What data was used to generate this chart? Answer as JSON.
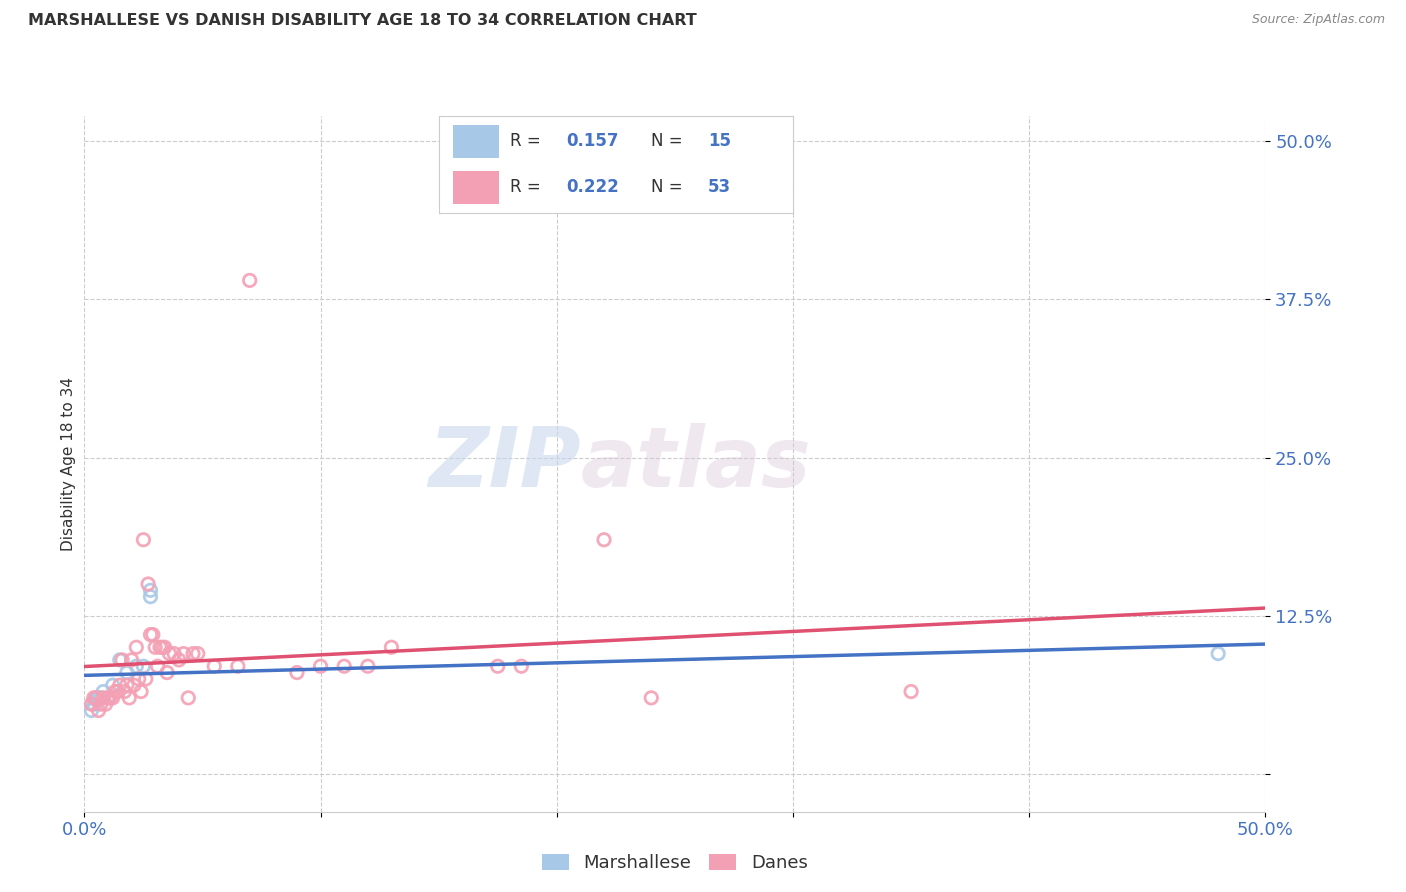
{
  "title": "MARSHALLESE VS DANISH DISABILITY AGE 18 TO 34 CORRELATION CHART",
  "source": "Source: ZipAtlas.com",
  "ylabel": "Disability Age 18 to 34",
  "xlim": [
    0.0,
    0.5
  ],
  "ylim": [
    -0.03,
    0.52
  ],
  "yticks": [
    0.0,
    0.125,
    0.25,
    0.375,
    0.5
  ],
  "ytick_labels": [
    "",
    "12.5%",
    "25.0%",
    "37.5%",
    "50.0%"
  ],
  "xticks": [
    0.0,
    0.1,
    0.2,
    0.3,
    0.4,
    0.5
  ],
  "xtick_labels": [
    "0.0%",
    "",
    "",
    "",
    "",
    "50.0%"
  ],
  "grid_color": "#cccccc",
  "background_color": "#ffffff",
  "marshallese_color": "#a8c8e8",
  "danes_color": "#f4a0b4",
  "marshallese_line_color": "#4472c4",
  "danes_line_color": "#e05070",
  "tick_color": "#4472c4",
  "marshallese_R": 0.157,
  "marshallese_N": 15,
  "danes_R": 0.222,
  "danes_N": 53,
  "watermark_zip": "ZIP",
  "watermark_atlas": "atlas",
  "marshallese_points": [
    [
      0.003,
      0.05
    ],
    [
      0.004,
      0.055
    ],
    [
      0.005,
      0.06
    ],
    [
      0.006,
      0.06
    ],
    [
      0.007,
      0.06
    ],
    [
      0.008,
      0.065
    ],
    [
      0.01,
      0.06
    ],
    [
      0.012,
      0.07
    ],
    [
      0.015,
      0.09
    ],
    [
      0.018,
      0.08
    ],
    [
      0.022,
      0.085
    ],
    [
      0.025,
      0.085
    ],
    [
      0.028,
      0.14
    ],
    [
      0.028,
      0.145
    ],
    [
      0.48,
      0.095
    ]
  ],
  "danes_points": [
    [
      0.003,
      0.055
    ],
    [
      0.004,
      0.06
    ],
    [
      0.005,
      0.06
    ],
    [
      0.006,
      0.05
    ],
    [
      0.007,
      0.055
    ],
    [
      0.008,
      0.06
    ],
    [
      0.009,
      0.055
    ],
    [
      0.01,
      0.06
    ],
    [
      0.011,
      0.06
    ],
    [
      0.012,
      0.06
    ],
    [
      0.013,
      0.065
    ],
    [
      0.014,
      0.065
    ],
    [
      0.015,
      0.07
    ],
    [
      0.016,
      0.09
    ],
    [
      0.017,
      0.065
    ],
    [
      0.018,
      0.07
    ],
    [
      0.019,
      0.06
    ],
    [
      0.02,
      0.09
    ],
    [
      0.021,
      0.07
    ],
    [
      0.022,
      0.1
    ],
    [
      0.023,
      0.075
    ],
    [
      0.024,
      0.065
    ],
    [
      0.025,
      0.185
    ],
    [
      0.026,
      0.075
    ],
    [
      0.027,
      0.15
    ],
    [
      0.028,
      0.11
    ],
    [
      0.029,
      0.11
    ],
    [
      0.03,
      0.1
    ],
    [
      0.031,
      0.085
    ],
    [
      0.032,
      0.1
    ],
    [
      0.033,
      0.1
    ],
    [
      0.034,
      0.1
    ],
    [
      0.035,
      0.08
    ],
    [
      0.036,
      0.095
    ],
    [
      0.038,
      0.095
    ],
    [
      0.04,
      0.09
    ],
    [
      0.042,
      0.095
    ],
    [
      0.044,
      0.06
    ],
    [
      0.046,
      0.095
    ],
    [
      0.048,
      0.095
    ],
    [
      0.055,
      0.085
    ],
    [
      0.065,
      0.085
    ],
    [
      0.07,
      0.39
    ],
    [
      0.09,
      0.08
    ],
    [
      0.1,
      0.085
    ],
    [
      0.11,
      0.085
    ],
    [
      0.12,
      0.085
    ],
    [
      0.13,
      0.1
    ],
    [
      0.175,
      0.085
    ],
    [
      0.185,
      0.085
    ],
    [
      0.22,
      0.185
    ],
    [
      0.24,
      0.06
    ],
    [
      0.35,
      0.065
    ]
  ]
}
